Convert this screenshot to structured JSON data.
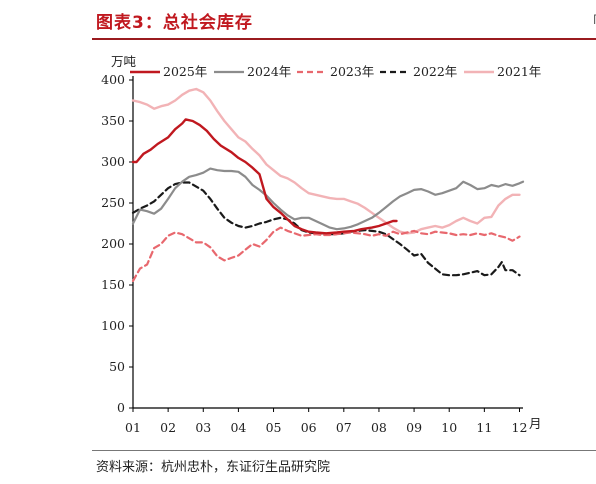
{
  "header": {
    "title": "图表3：总社会库存"
  },
  "source": {
    "text": "资料来源：杭州忠朴，东证衍生品研究院"
  },
  "chart_data": {
    "type": "line",
    "title": "图表3：总社会库存",
    "ylabel": "万吨",
    "xlabel": "月",
    "ylim": [
      0,
      400
    ],
    "yticks": [
      0,
      50,
      100,
      150,
      200,
      250,
      300,
      350,
      400
    ],
    "xlim": [
      1,
      12.1
    ],
    "xticks": [
      "01",
      "02",
      "03",
      "04",
      "05",
      "06",
      "07",
      "08",
      "09",
      "10",
      "11",
      "12"
    ],
    "grid": false,
    "legend_position": "top",
    "series": [
      {
        "name": "2025年",
        "color": "#c0181f",
        "dash": "solid",
        "width": 2.4,
        "x": [
          1.0,
          1.1,
          1.3,
          1.5,
          1.7,
          2.0,
          2.2,
          2.4,
          2.5,
          2.7,
          2.9,
          3.1,
          3.3,
          3.5,
          3.8,
          4.0,
          4.2,
          4.4,
          4.6,
          4.8,
          5.0,
          5.2,
          5.4,
          5.6,
          5.8,
          6.0,
          6.2,
          6.5,
          6.8,
          7.0,
          7.3,
          7.5,
          7.8,
          8.0,
          8.2,
          8.4,
          8.5
        ],
        "y": [
          300,
          300,
          310,
          315,
          322,
          330,
          340,
          347,
          352,
          350,
          345,
          338,
          328,
          320,
          312,
          305,
          300,
          293,
          285,
          255,
          245,
          238,
          230,
          222,
          218,
          215,
          214,
          213,
          214,
          215,
          216,
          218,
          220,
          222,
          225,
          228,
          228
        ]
      },
      {
        "name": "2024年",
        "color": "#8c8c8c",
        "dash": "solid",
        "width": 2.2,
        "x": [
          1.0,
          1.2,
          1.4,
          1.6,
          1.8,
          2.0,
          2.2,
          2.4,
          2.6,
          2.8,
          3.0,
          3.2,
          3.4,
          3.6,
          3.8,
          4.0,
          4.2,
          4.4,
          4.6,
          4.8,
          5.0,
          5.2,
          5.4,
          5.6,
          5.8,
          6.0,
          6.2,
          6.4,
          6.6,
          6.8,
          7.0,
          7.2,
          7.4,
          7.6,
          7.8,
          8.0,
          8.2,
          8.4,
          8.6,
          8.8,
          9.0,
          9.2,
          9.4,
          9.6,
          9.8,
          10.0,
          10.2,
          10.4,
          10.6,
          10.8,
          11.0,
          11.2,
          11.4,
          11.6,
          11.8,
          12.0,
          12.1
        ],
        "y": [
          225,
          242,
          240,
          237,
          243,
          255,
          268,
          276,
          282,
          284,
          287,
          292,
          290,
          289,
          289,
          288,
          282,
          272,
          266,
          259,
          250,
          242,
          235,
          230,
          232,
          232,
          228,
          224,
          220,
          218,
          219,
          221,
          224,
          228,
          232,
          238,
          245,
          252,
          258,
          262,
          266,
          267,
          264,
          260,
          262,
          265,
          268,
          276,
          272,
          267,
          268,
          272,
          270,
          273,
          271,
          274,
          276
        ]
      },
      {
        "name": "2023年",
        "color": "#e8686e",
        "dash": "dashed",
        "width": 2.2,
        "x": [
          1.0,
          1.2,
          1.4,
          1.6,
          1.8,
          2.0,
          2.2,
          2.4,
          2.6,
          2.8,
          3.0,
          3.2,
          3.4,
          3.6,
          3.8,
          4.0,
          4.2,
          4.4,
          4.6,
          4.8,
          5.0,
          5.2,
          5.4,
          5.6,
          5.8,
          6.0,
          6.2,
          6.4,
          6.6,
          6.8,
          7.0,
          7.2,
          7.4,
          7.6,
          7.8,
          8.0,
          8.2,
          8.4,
          8.6,
          8.8,
          9.0,
          9.2,
          9.4,
          9.6,
          9.8,
          10.0,
          10.2,
          10.4,
          10.6,
          10.8,
          11.0,
          11.2,
          11.4,
          11.6,
          11.8,
          12.0
        ],
        "y": [
          155,
          170,
          175,
          195,
          200,
          210,
          214,
          212,
          207,
          202,
          202,
          196,
          185,
          180,
          183,
          186,
          193,
          200,
          197,
          205,
          215,
          220,
          216,
          213,
          210,
          211,
          212,
          211,
          211,
          212,
          213,
          214,
          213,
          212,
          210,
          212,
          210,
          215,
          212,
          214,
          216,
          213,
          212,
          215,
          214,
          213,
          211,
          212,
          211,
          213,
          211,
          213,
          210,
          208,
          204,
          209
        ]
      },
      {
        "name": "2022年",
        "color": "#1a1a1a",
        "dash": "dashed",
        "width": 2.2,
        "x": [
          1.0,
          1.2,
          1.4,
          1.6,
          1.8,
          2.0,
          2.2,
          2.4,
          2.6,
          2.8,
          3.0,
          3.2,
          3.4,
          3.6,
          3.8,
          4.0,
          4.2,
          4.4,
          4.6,
          4.8,
          5.0,
          5.2,
          5.4,
          5.6,
          5.8,
          6.0,
          6.2,
          6.4,
          6.6,
          6.8,
          7.0,
          7.2,
          7.4,
          7.6,
          7.8,
          8.0,
          8.2,
          8.4,
          8.6,
          8.8,
          9.0,
          9.2,
          9.4,
          9.6,
          9.8,
          10.0,
          10.2,
          10.4,
          10.6,
          10.8,
          11.0,
          11.2,
          11.4,
          11.5,
          11.6,
          11.8,
          12.0
        ],
        "y": [
          238,
          243,
          247,
          252,
          260,
          268,
          273,
          275,
          275,
          270,
          265,
          255,
          243,
          232,
          226,
          222,
          220,
          222,
          225,
          227,
          230,
          232,
          230,
          225,
          217,
          214,
          213,
          213,
          212,
          212,
          213,
          215,
          216,
          217,
          216,
          215,
          212,
          206,
          200,
          193,
          186,
          188,
          177,
          170,
          163,
          162,
          162,
          163,
          165,
          167,
          162,
          163,
          172,
          178,
          168,
          168,
          162
        ]
      },
      {
        "name": "2021年",
        "color": "#f2b3b6",
        "dash": "solid",
        "width": 2.4,
        "x": [
          1.0,
          1.2,
          1.4,
          1.6,
          1.8,
          2.0,
          2.2,
          2.4,
          2.6,
          2.8,
          3.0,
          3.2,
          3.4,
          3.6,
          3.8,
          4.0,
          4.2,
          4.4,
          4.6,
          4.8,
          5.0,
          5.2,
          5.4,
          5.6,
          5.8,
          6.0,
          6.2,
          6.4,
          6.6,
          6.8,
          7.0,
          7.2,
          7.4,
          7.6,
          7.8,
          8.0,
          8.2,
          8.4,
          8.6,
          8.8,
          9.0,
          9.2,
          9.4,
          9.6,
          9.8,
          10.0,
          10.2,
          10.4,
          10.6,
          10.8,
          11.0,
          11.2,
          11.4,
          11.6,
          11.8,
          12.0
        ],
        "y": [
          375,
          373,
          370,
          365,
          368,
          370,
          375,
          382,
          387,
          389,
          385,
          375,
          362,
          350,
          340,
          330,
          325,
          316,
          308,
          297,
          290,
          283,
          280,
          275,
          268,
          262,
          260,
          258,
          256,
          255,
          255,
          252,
          249,
          244,
          238,
          232,
          226,
          220,
          215,
          213,
          214,
          218,
          220,
          222,
          220,
          223,
          228,
          232,
          228,
          225,
          232,
          233,
          247,
          255,
          260,
          260
        ]
      }
    ]
  }
}
